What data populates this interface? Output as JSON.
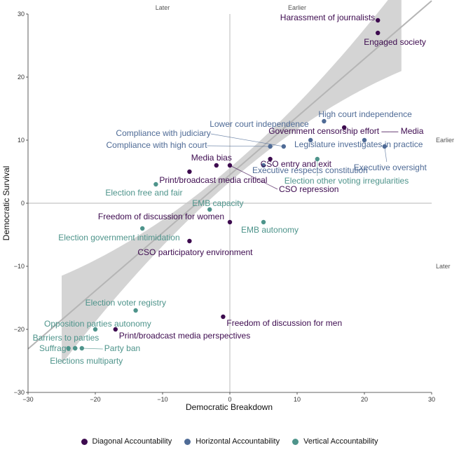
{
  "chart_data": {
    "type": "scatter",
    "xlabel": "Democratic Breakdown",
    "ylabel": "Democratic Survival",
    "xlim": [
      -30,
      30
    ],
    "ylim": [
      -30,
      30
    ],
    "xticks": [
      -30,
      -20,
      -10,
      0,
      10,
      20,
      30
    ],
    "yticks": [
      -30,
      -20,
      -10,
      0,
      10,
      20,
      30
    ],
    "grid": false,
    "reference_lines": {
      "x": 0,
      "y": 0
    },
    "top_labels": [
      "Later",
      "Earlier"
    ],
    "right_labels": [
      "Earlier",
      "Later"
    ],
    "legend_position": "bottom",
    "trend": {
      "intercept": 4.5,
      "slope": 0.92,
      "x_range": [
        -25,
        25.5
      ],
      "ci_width_at_ends": 14,
      "ci_width_at_center": 2.2
    },
    "colors": {
      "Diagonal Accountability": "#3d0b4f",
      "Horizontal Accountability": "#4f6b96",
      "Vertical Accountability": "#4e948b",
      "trend_line": "#b5b5b5",
      "ribbon": "#cccccc"
    },
    "series": [
      {
        "name": "Diagonal Accountability",
        "points": [
          {
            "label": "Harassment of journalists",
            "x": 22,
            "y": 29
          },
          {
            "label": "Engaged society",
            "x": 22,
            "y": 27
          },
          {
            "label": "Government censorship effort —— Media",
            "x": 17,
            "y": 12
          },
          {
            "label": "Media bias",
            "x": -2,
            "y": 6
          },
          {
            "label": "CSO repression",
            "x": 0,
            "y": 6
          },
          {
            "label": "CSO entry and exit",
            "x": 6,
            "y": 7
          },
          {
            "label": "Print/broadcast media critical",
            "x": -6,
            "y": 5
          },
          {
            "label": "Freedom of discussion for women",
            "x": 0,
            "y": -3
          },
          {
            "label": "CSO participatory environment",
            "x": -6,
            "y": -6
          },
          {
            "label": "Freedom of discussion for men",
            "x": -1,
            "y": -18
          },
          {
            "label": "Print/broadcast media perspectives",
            "x": -17,
            "y": -20
          }
        ]
      },
      {
        "name": "Horizontal Accountability",
        "points": [
          {
            "label": "High court independence",
            "x": 14,
            "y": 13
          },
          {
            "label": "Lower court independence",
            "x": 12,
            "y": 10
          },
          {
            "label": "Compliance with judiciary",
            "x": 8,
            "y": 9
          },
          {
            "label": "Compliance with high court",
            "x": 6,
            "y": 9
          },
          {
            "label": "Executive respects constitution",
            "x": 5,
            "y": 6
          },
          {
            "label": "Legislature investigates in practice",
            "x": 20,
            "y": 10
          },
          {
            "label": "Executive oversight",
            "x": 23,
            "y": 9
          }
        ]
      },
      {
        "name": "Vertical Accountability",
        "points": [
          {
            "label": "Election other voting irregularities",
            "x": 13,
            "y": 7
          },
          {
            "label": "Election free and fair",
            "x": -11,
            "y": 3
          },
          {
            "label": "EMB capacity",
            "x": -3,
            "y": -1
          },
          {
            "label": "EMB autonomy",
            "x": 5,
            "y": -3
          },
          {
            "label": "Election government intimidation",
            "x": -13,
            "y": -4
          },
          {
            "label": "Election voter registry",
            "x": -14,
            "y": -17
          },
          {
            "label": "Opposition parties autonomy",
            "x": -20,
            "y": -20
          },
          {
            "label": "Barriers to parties",
            "x": -24,
            "y": -23
          },
          {
            "label": "Suffrage",
            "x": -23,
            "y": -23
          },
          {
            "label": "Party ban",
            "x": -22,
            "y": -23
          },
          {
            "label": "Elections multiparty",
            "x": -23,
            "y": -23
          }
        ]
      }
    ]
  },
  "legend": {
    "items": [
      {
        "label": "Diagonal Accountability",
        "color": "#3d0b4f"
      },
      {
        "label": "Horizontal Accountability",
        "color": "#4f6b96"
      },
      {
        "label": "Vertical Accountability",
        "color": "#4e948b"
      }
    ]
  }
}
